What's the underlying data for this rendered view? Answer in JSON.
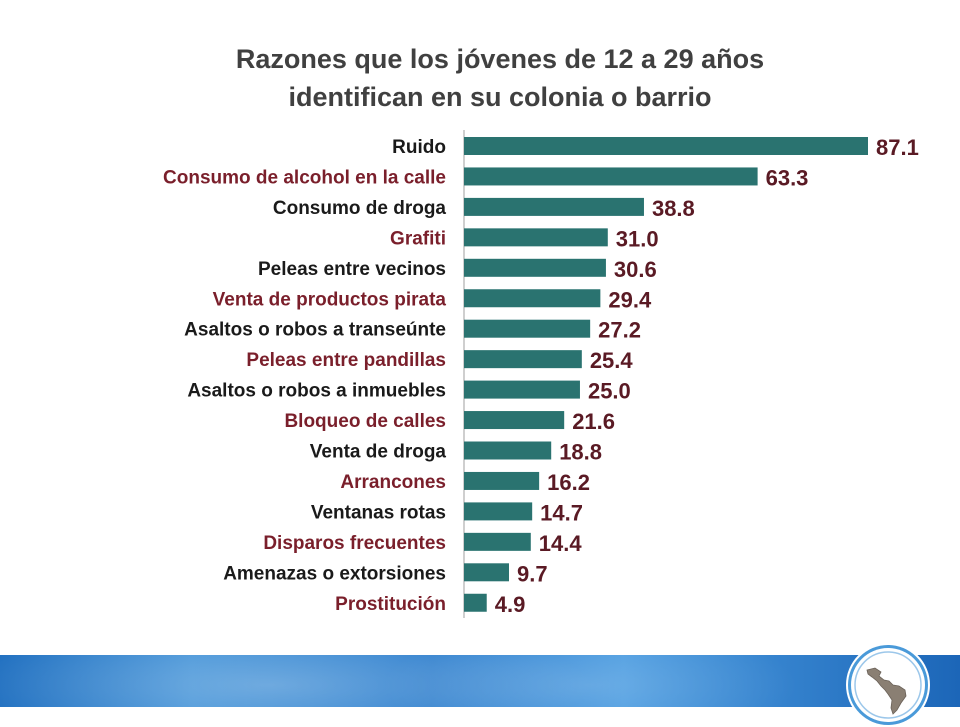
{
  "chart_data": {
    "type": "bar",
    "orientation": "horizontal",
    "title": "Razones que los jóvenes de 12 a 29 años identifican en su colonia o barrio",
    "title_lines": [
      "Razones que los jóvenes de 12 a 29 años",
      "identifican en su colonia o barrio"
    ],
    "categories": [
      "Ruido",
      "Consumo de alcohol en la calle",
      "Consumo de droga",
      "Grafiti",
      "Peleas entre vecinos",
      "Venta de productos pirata",
      "Asaltos o robos a transeúnte",
      "Peleas entre pandillas",
      "Asaltos o robos a inmuebles",
      "Bloqueo de calles",
      "Venta de droga",
      "Arrancones",
      "Ventanas rotas",
      "Disparos frecuentes",
      "Amenazas o extorsiones",
      "Prostitución"
    ],
    "values": [
      87.1,
      63.3,
      38.8,
      31.0,
      30.6,
      29.4,
      27.2,
      25.4,
      25.0,
      21.6,
      18.8,
      16.2,
      14.7,
      14.4,
      9.7,
      4.9
    ],
    "value_labels": [
      "87.1",
      "63.3",
      "38.8",
      "31.0",
      "30.6",
      "29.4",
      "27.2",
      "25.4",
      "25.0",
      "21.6",
      "18.8",
      "16.2",
      "14.7",
      "14.4",
      "9.7",
      "4.9"
    ],
    "xlim": [
      0,
      87.1
    ],
    "grid": false,
    "legend": "none"
  },
  "colors": {
    "bar": "#2a7370",
    "label_dark": "#1a1a1a",
    "label_accent": "#7a1f2b",
    "value_label": "#5a1a24",
    "axis": "#bfbfbf",
    "footer": "#2a7ccc"
  },
  "footer": {
    "logo_icon": "latin-america-map-icon"
  }
}
